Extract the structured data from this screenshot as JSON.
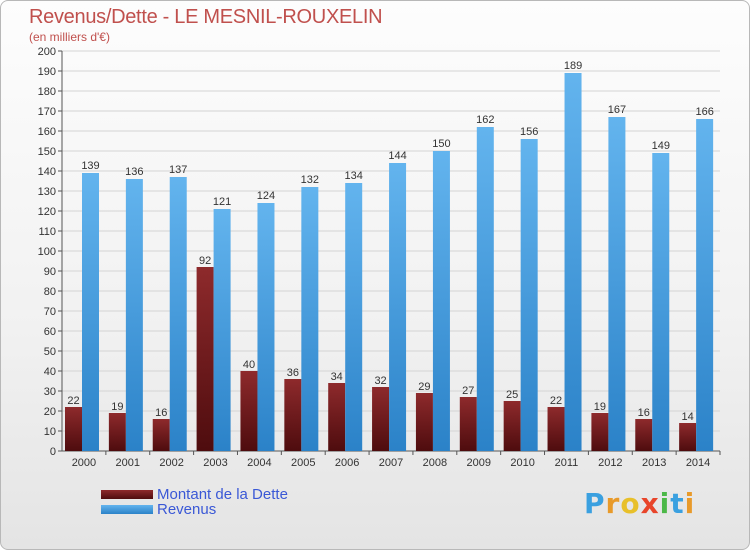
{
  "title": "Revenus/Dette - LE MESNIL-ROUXELIN",
  "subtitle": "(en milliers d'€)",
  "colors": {
    "dette_top": "#8e2a2c",
    "dette_bottom": "#4e0c0e",
    "revenus_top": "#63b4ee",
    "revenus_bottom": "#2b82c8",
    "title": "#c0504d",
    "legend_text": "#3a58d6"
  },
  "chart_data": {
    "type": "bar",
    "categories": [
      "2000",
      "2001",
      "2002",
      "2003",
      "2004",
      "2005",
      "2006",
      "2007",
      "2008",
      "2009",
      "2010",
      "2011",
      "2012",
      "2013",
      "2014"
    ],
    "series": [
      {
        "name": "Montant de la Dette",
        "values": [
          22,
          19,
          16,
          92,
          40,
          36,
          34,
          32,
          29,
          27,
          25,
          22,
          19,
          16,
          14
        ]
      },
      {
        "name": "Revenus",
        "values": [
          139,
          136,
          137,
          121,
          124,
          132,
          134,
          144,
          150,
          162,
          156,
          189,
          167,
          149,
          166
        ]
      }
    ],
    "ylim": [
      0,
      200
    ],
    "ytick_step": 10,
    "grid": true,
    "legend_position": "bottom-left"
  },
  "legend": {
    "items": [
      {
        "label": "Montant de la Dette"
      },
      {
        "label": "Revenus"
      }
    ]
  },
  "logo": {
    "letters": [
      "P",
      "r",
      "o",
      "x",
      "i",
      "t",
      "i"
    ],
    "colors": [
      "#3aa0e0",
      "#e89a2a",
      "#e8c02a",
      "#e8452a",
      "#4cb848",
      "#3aa0e0",
      "#e89a2a"
    ]
  }
}
